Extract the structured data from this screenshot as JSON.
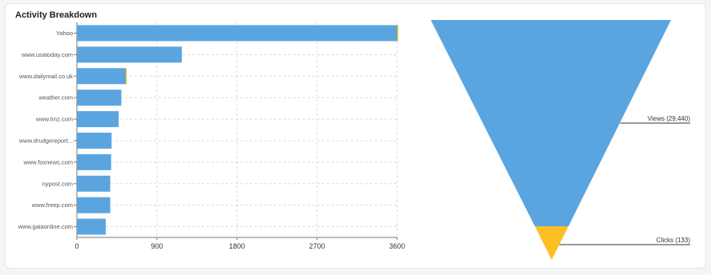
{
  "panel": {
    "title": "Activity Breakdown"
  },
  "chart_data": [
    {
      "type": "bar",
      "orientation": "horizontal",
      "categories": [
        "Yahoo",
        "www.usatoday.com",
        "www.dailymail.co.uk",
        "weather.com",
        "www.tmz.com",
        "www.drudgereport...",
        "www.foxnews.com",
        "nypost.com",
        "www.freep.com",
        "www.gaiaonline.com"
      ],
      "series": [
        {
          "values": [
            3600,
            1180,
            550,
            500,
            470,
            390,
            385,
            375,
            375,
            325
          ],
          "color": "#5aa5e0"
        },
        {
          "values": [
            12,
            0,
            10,
            0,
            0,
            0,
            0,
            0,
            0,
            0
          ],
          "color": "#f5b800"
        }
      ],
      "xticks": [
        0,
        900,
        1800,
        2700,
        3600
      ],
      "xlim": [
        0,
        3600
      ],
      "grid": true
    },
    {
      "type": "funnel",
      "stages": [
        {
          "label": "Views (29,440)",
          "value": 29440,
          "color": "#5aa5e0"
        },
        {
          "label": "Clicks (133)",
          "value": 133,
          "color": "#fbbf24"
        }
      ]
    }
  ]
}
